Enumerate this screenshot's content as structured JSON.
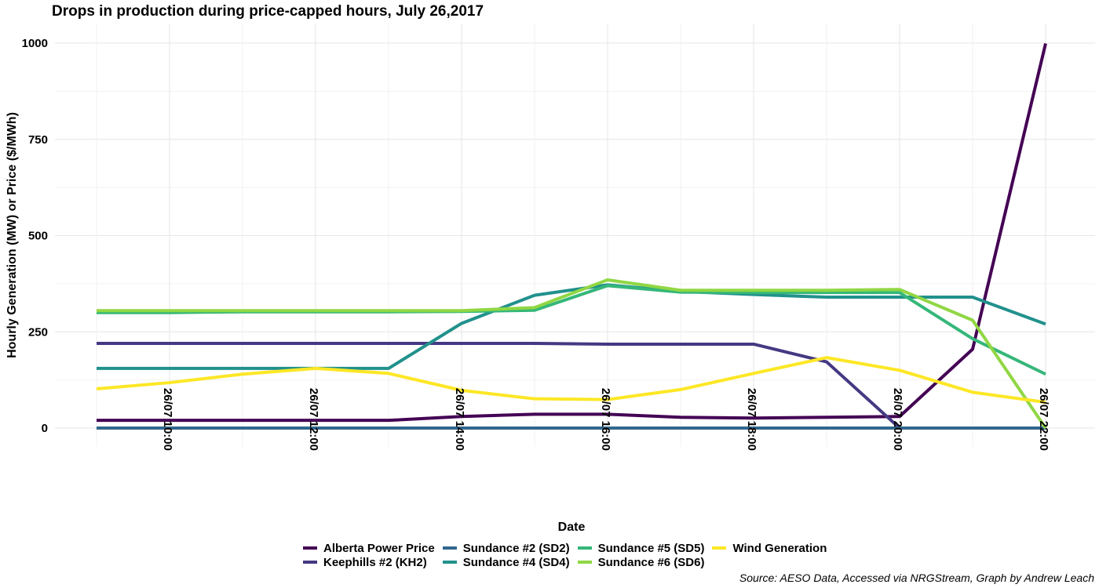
{
  "title": "Drops in production during price-capped hours, July 26,2017",
  "source": "Source: AESO Data, Accessed via NRGStream, Graph by Andrew Leach",
  "chart_data": {
    "type": "line",
    "title": "Drops in production during price-capped hours, July 26,2017",
    "xlabel": "Date",
    "ylabel": "Hourly Generation (MW) or Price ($/MWh)",
    "x": [
      "26/07 09:00",
      "26/07 10:00",
      "26/07 11:00",
      "26/07 12:00",
      "26/07 13:00",
      "26/07 14:00",
      "26/07 15:00",
      "26/07 16:00",
      "26/07 17:00",
      "26/07 18:00",
      "26/07 19:00",
      "26/07 20:00",
      "26/07 21:00",
      "26/07 22:00"
    ],
    "x_tick_labels": [
      "26/07 10:00",
      "26/07 12:00",
      "26/07 14:00",
      "26/07 16:00",
      "26/07 18:00",
      "26/07 20:00",
      "26/07 22:00"
    ],
    "y_ticks": [
      0,
      250,
      500,
      750,
      1000
    ],
    "ylim": [
      -50,
      1050
    ],
    "grid": true,
    "legend_position": "bottom",
    "series": [
      {
        "name": "Alberta Power Price",
        "color": "#440154",
        "values": [
          20,
          20,
          20,
          20,
          20,
          30,
          36,
          36,
          28,
          26,
          28,
          30,
          205,
          999
        ]
      },
      {
        "name": "Keephills #2 (KH2)",
        "color": "#443983",
        "values": [
          220,
          220,
          220,
          220,
          220,
          220,
          220,
          218,
          218,
          218,
          172,
          0,
          0,
          0
        ]
      },
      {
        "name": "Sundance #2 (SD2)",
        "color": "#31688e",
        "values": [
          0,
          0,
          0,
          0,
          0,
          0,
          0,
          0,
          0,
          0,
          0,
          0,
          0,
          0
        ]
      },
      {
        "name": "Sundance #4 (SD4)",
        "color": "#21918c",
        "values": [
          155,
          155,
          155,
          155,
          155,
          272,
          345,
          372,
          355,
          347,
          340,
          340,
          340,
          270
        ]
      },
      {
        "name": "Sundance #5 (SD5)",
        "color": "#35b779",
        "values": [
          300,
          300,
          302,
          302,
          302,
          303,
          306,
          370,
          353,
          352,
          352,
          352,
          232,
          140
        ]
      },
      {
        "name": "Sundance #6 (SD6)",
        "color": "#90d743",
        "values": [
          305,
          305,
          305,
          305,
          305,
          305,
          313,
          385,
          358,
          358,
          358,
          360,
          280,
          0
        ]
      },
      {
        "name": "Wind Generation",
        "color": "#fde725",
        "values": [
          102,
          118,
          140,
          155,
          142,
          98,
          76,
          74,
          100,
          142,
          183,
          150,
          93,
          67
        ]
      }
    ]
  }
}
